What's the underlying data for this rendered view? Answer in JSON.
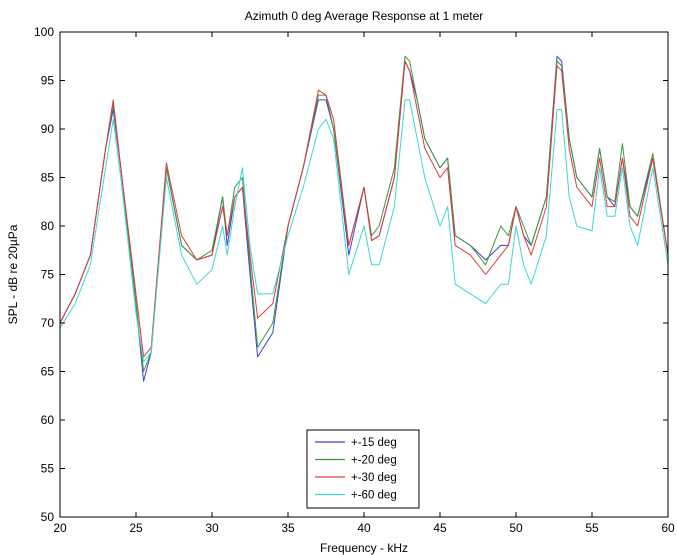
{
  "chart_data": {
    "type": "line",
    "title": "Azimuth 0 deg Average Response at 1 meter",
    "xlabel": "Frequency - kHz",
    "ylabel": "SPL - dB re 20µPa",
    "xlim": [
      20,
      60
    ],
    "ylim": [
      50,
      100
    ],
    "xticks": [
      20,
      25,
      30,
      35,
      40,
      45,
      50,
      55,
      60
    ],
    "yticks": [
      50,
      55,
      60,
      65,
      70,
      75,
      80,
      85,
      90,
      95,
      100
    ],
    "grid": false,
    "legend_position": "bottom-center",
    "series": [
      {
        "name": "+-15 deg",
        "color": "#3f3fd6",
        "x": [
          20,
          21,
          22,
          23,
          23.5,
          24,
          25,
          25.5,
          26,
          27,
          28,
          29,
          30,
          30.7,
          31,
          31.5,
          32,
          32.5,
          33,
          34,
          35,
          36,
          37,
          37.5,
          38,
          39,
          40,
          40.5,
          41,
          42,
          42.7,
          43,
          43.5,
          44,
          45,
          45.5,
          46,
          47,
          48,
          49,
          49.5,
          50,
          50.5,
          51,
          52,
          52.7,
          53,
          53.5,
          54,
          55,
          55.5,
          56,
          56.5,
          57,
          57.5,
          58,
          59,
          60
        ],
        "y": [
          70,
          73,
          77,
          88,
          92,
          86,
          72,
          64,
          67,
          86,
          78,
          76.5,
          77,
          83,
          78,
          83,
          84,
          75,
          66.5,
          69,
          80,
          86,
          93,
          93,
          90,
          77,
          84,
          78.5,
          79,
          85,
          97,
          96,
          93,
          89,
          86,
          87,
          79,
          78,
          76.5,
          78,
          78,
          82,
          79,
          78,
          83,
          97.5,
          97,
          89,
          85,
          83,
          88,
          83,
          82,
          87,
          82,
          81,
          87,
          77
        ]
      },
      {
        "name": "+-20 deg",
        "color": "#3a9a3a",
        "x": [
          20,
          21,
          22,
          23,
          23.5,
          24,
          25,
          25.5,
          26,
          27,
          28,
          29,
          30,
          30.7,
          31,
          31.5,
          32,
          32.5,
          33,
          34,
          35,
          36,
          37,
          37.5,
          38,
          39,
          40,
          40.5,
          41,
          42,
          42.7,
          43,
          43.5,
          44,
          45,
          45.5,
          46,
          47,
          48,
          49,
          49.5,
          50,
          50.5,
          51,
          52,
          52.7,
          53,
          53.5,
          54,
          55,
          55.5,
          56,
          56.5,
          57,
          57.5,
          58,
          59,
          60
        ],
        "y": [
          70,
          73,
          77,
          88,
          92.5,
          86,
          72,
          65,
          67,
          86,
          78,
          76.5,
          77.5,
          83,
          79,
          84,
          85,
          76,
          67.5,
          70,
          80,
          86,
          93.5,
          93.5,
          90,
          78,
          84,
          79,
          80,
          86,
          97.5,
          97,
          93,
          89,
          86,
          87,
          79,
          78,
          76,
          80,
          79,
          82,
          80,
          78,
          83,
          97,
          96.5,
          89,
          85,
          83,
          88,
          83,
          82.5,
          88.5,
          82,
          81,
          87.5,
          77
        ]
      },
      {
        "name": "+-30 deg",
        "color": "#e03a3a",
        "x": [
          20,
          21,
          22,
          23,
          23.5,
          24,
          25,
          25.5,
          26,
          27,
          28,
          29,
          30,
          30.7,
          31,
          31.5,
          32,
          32.5,
          33,
          34,
          35,
          36,
          37,
          37.5,
          38,
          39,
          40,
          40.5,
          41,
          42,
          42.7,
          43,
          43.5,
          44,
          45,
          45.5,
          46,
          47,
          48,
          49,
          49.5,
          50,
          50.5,
          51,
          52,
          52.7,
          53,
          53.5,
          54,
          55,
          55.5,
          56,
          56.5,
          57,
          57.5,
          58,
          59,
          60
        ],
        "y": [
          70,
          73,
          77,
          88,
          93,
          86,
          73,
          66.5,
          67.5,
          86.5,
          79,
          76.5,
          77,
          82,
          79,
          83,
          84,
          77,
          70.5,
          72,
          80,
          86,
          94,
          93.5,
          91,
          78,
          84,
          78.5,
          79,
          85,
          97,
          96,
          92,
          88,
          85,
          86,
          78,
          77,
          75,
          77,
          78,
          82,
          79,
          77,
          82,
          96.5,
          96,
          88,
          84,
          82,
          87,
          82,
          82,
          87,
          81,
          80,
          87,
          77
        ]
      },
      {
        "name": "+-60 deg",
        "color": "#3fd6d6",
        "x": [
          20,
          21,
          22,
          23,
          23.5,
          24,
          25,
          25.5,
          26,
          27,
          28,
          29,
          30,
          30.7,
          31,
          31.5,
          32,
          32.5,
          33,
          34,
          35,
          36,
          37,
          37.5,
          38,
          39,
          40,
          40.5,
          41,
          42,
          42.7,
          43,
          43.5,
          44,
          45,
          45.5,
          46,
          47,
          48,
          49,
          49.5,
          50,
          50.5,
          51,
          52,
          52.7,
          53,
          53.5,
          54,
          55,
          55.5,
          56,
          56.5,
          57,
          57.5,
          58,
          59,
          60
        ],
        "y": [
          69.5,
          72,
          76,
          86,
          91,
          85,
          71,
          66,
          67,
          85,
          77,
          74,
          75.5,
          80,
          77,
          82,
          86,
          78,
          73,
          73,
          79,
          84,
          90,
          91,
          89,
          75,
          80,
          76,
          76,
          82,
          93,
          93,
          89,
          85,
          80,
          82,
          74,
          73,
          72,
          74,
          74,
          80,
          76,
          74,
          79,
          92,
          92,
          83,
          80,
          79.5,
          86,
          81,
          81,
          86,
          80,
          78,
          86,
          76
        ]
      }
    ]
  }
}
